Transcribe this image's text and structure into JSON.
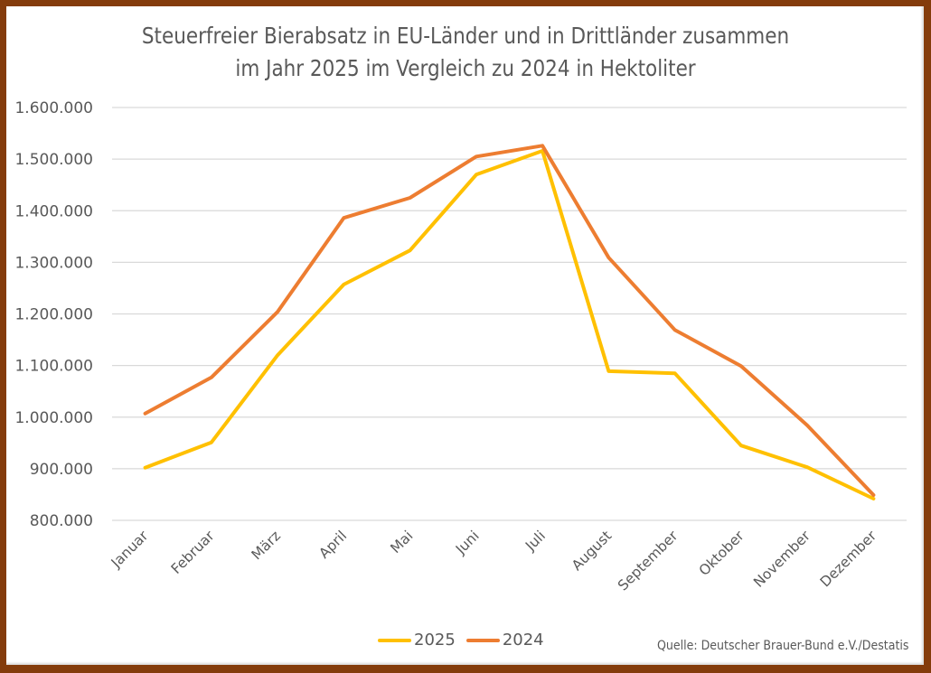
{
  "chart_data": {
    "type": "line",
    "title": "Steuerfreier Bierabsatz in EU-Länder und in Drittländer zusammen im Jahr 2025 im Vergleich zu 2024 in Hektoliter",
    "title_lines": [
      "Steuerfreier Bierabsatz in EU-Länder und in Drittländer zusammen",
      "im Jahr 2025 im Vergleich zu 2024 in Hektoliter"
    ],
    "xlabel": "",
    "ylabel": "",
    "categories": [
      "Januar",
      "Februar",
      "März",
      "April",
      "Mai",
      "Juni",
      "Juli",
      "August",
      "September",
      "Oktober",
      "November",
      "Dezember"
    ],
    "series": [
      {
        "name": "2025",
        "color": "#FFC000",
        "values": [
          902000,
          951000,
          1120000,
          1257000,
          1323000,
          1470000,
          1516000,
          1089000,
          1085000,
          945000,
          903000,
          842000
        ]
      },
      {
        "name": "2024",
        "color": "#ED7D31",
        "values": [
          1007000,
          1077000,
          1204000,
          1386000,
          1425000,
          1505000,
          1526000,
          1309000,
          1169000,
          1099000,
          984000,
          849000
        ]
      }
    ],
    "ylim": [
      800000,
      1600000
    ],
    "yticks": [
      800000,
      900000,
      1000000,
      1100000,
      1200000,
      1300000,
      1400000,
      1500000,
      1600000
    ],
    "ytick_labels": [
      "800.000",
      "900.000",
      "1.000.000",
      "1.100.000",
      "1.200.000",
      "1.300.000",
      "1.400.000",
      "1.500.000",
      "1.600.000"
    ],
    "grid": true,
    "legend_position": "bottom",
    "source": "Quelle: Deutscher Brauer-Bund e.V./Destatis"
  },
  "colors": {
    "frame": "#843C0C",
    "grid": "#D9D9D9",
    "text": "#595959"
  }
}
